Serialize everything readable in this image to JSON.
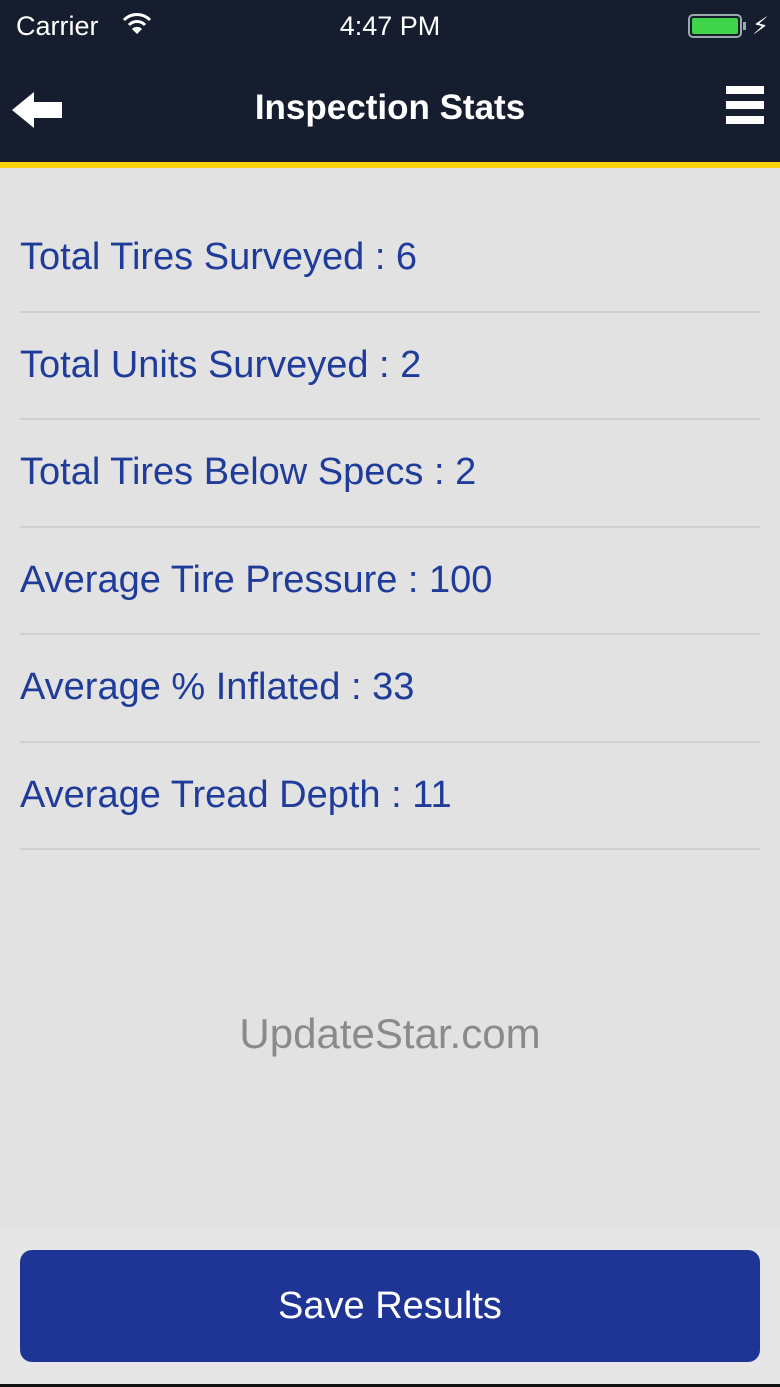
{
  "status_bar": {
    "carrier": "Carrier",
    "time": "4:47 PM",
    "battery_level": 1.0,
    "charging": true
  },
  "header": {
    "title": "Inspection Stats",
    "back_icon": "arrow-left-icon",
    "menu_icon": "hamburger-menu-icon"
  },
  "stats": [
    {
      "label": "Total Tires Surveyed : 6"
    },
    {
      "label": "Total Units Surveyed : 2"
    },
    {
      "label": "Total Tires Below Specs : 2"
    },
    {
      "label": "Average Tire Pressure : 100"
    },
    {
      "label": "Average % Inflated : 33"
    },
    {
      "label": "Average Tread Depth : 11"
    }
  ],
  "footer": {
    "save_label": "Save Results"
  },
  "watermark": "UpdateStar.com",
  "colors": {
    "nav_bg": "#161d2e",
    "accent_line": "#f8d20e",
    "text": "#1f3c9a",
    "button": "#1e3596",
    "background": "#e2e2e2"
  }
}
